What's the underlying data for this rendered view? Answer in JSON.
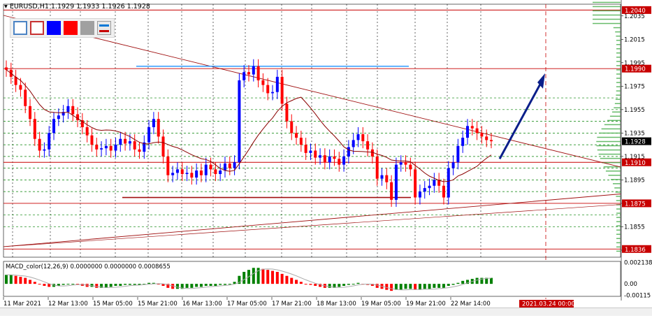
{
  "header": {
    "symbol_line": "EURUSD,H1  1.1929 1.1933 1.1926 1.1928"
  },
  "toolbar": {
    "buttons": [
      {
        "name": "rect-hollow-blue",
        "color": "#4b83c4"
      },
      {
        "name": "rect-hollow-red",
        "color": "#c83232"
      },
      {
        "name": "fill-blue",
        "color": "#0000ff"
      },
      {
        "name": "fill-red",
        "color": "#ff0000"
      },
      {
        "name": "fill-gray",
        "color": "#a0a0a0"
      },
      {
        "name": "lines-blue-red",
        "color": "#0078d7"
      }
    ]
  },
  "chart_data": {
    "type": "line",
    "symbol": "EURUSD",
    "timeframe": "H1",
    "ohlc_last": {
      "open": 1.1929,
      "high": 1.1933,
      "low": 1.1926,
      "close": 1.1928
    },
    "ylim": [
      1.1829,
      1.2045
    ],
    "price_ticks": [
      "1.2035",
      "1.2015",
      "1.1995",
      "1.1975",
      "1.1955",
      "1.1935",
      "1.1915",
      "1.1895",
      "1.1875",
      "1.1855",
      "1.1835"
    ],
    "price_labels": [
      {
        "text": "1.2040",
        "price": 1.204,
        "color": "#c80000"
      },
      {
        "text": "1.1990",
        "price": 1.199,
        "color": "#c80000"
      },
      {
        "text": "1.1928",
        "price": 1.1928,
        "color": "#000000"
      },
      {
        "text": "1.1910",
        "price": 1.191,
        "color": "#c80000"
      },
      {
        "text": "1.1875",
        "price": 1.1875,
        "color": "#c80000"
      },
      {
        "text": "1.1836",
        "price": 1.1836,
        "color": "#c80000"
      }
    ],
    "time_labels": [
      "11 Mar 2021",
      "12 Mar 13:00",
      "15 Mar 05:00",
      "15 Mar 21:00",
      "16 Mar 13:00",
      "17 Mar 05:00",
      "17 Mar 21:00",
      "18 Mar 13:00",
      "19 Mar 05:00",
      "19 Mar 21:00",
      "22 Mar 14:00"
    ],
    "future_label": "2021.03.24 00:00",
    "horizontal_levels": [
      1.204,
      1.199,
      1.191,
      1.1875,
      1.1836
    ],
    "support_resistance_dotted": [
      1.1965,
      1.1955,
      1.1945,
      1.1935,
      1.1925,
      1.1915,
      1.1905,
      1.1895,
      1.1885,
      1.1865,
      1.1855
    ],
    "colors": {
      "bull": "#0000ff",
      "bear": "#ff0000",
      "level": "#c80000",
      "dotted_grid": "#008000",
      "arrow": "#0b1f8a",
      "hline_blue": "#1e90ff",
      "ma": "#8b0000",
      "volume_profile": "#4caf50"
    },
    "close_series": [
      1.1989,
      1.1983,
      1.1976,
      1.1972,
      1.1958,
      1.1947,
      1.193,
      1.192,
      1.1921,
      1.1935,
      1.1947,
      1.195,
      1.1953,
      1.1958,
      1.1951,
      1.1946,
      1.194,
      1.1933,
      1.1925,
      1.1921,
      1.1922,
      1.1924,
      1.192,
      1.1925,
      1.193,
      1.1926,
      1.1928,
      1.1921,
      1.1919,
      1.1927,
      1.194,
      1.1947,
      1.1932,
      1.1915,
      1.1899,
      1.1901,
      1.1904,
      1.19,
      1.1901,
      1.1897,
      1.1903,
      1.1899,
      1.1908,
      1.1904,
      1.19,
      1.1903,
      1.1909,
      1.1905,
      1.191,
      1.198,
      1.1987,
      1.1985,
      1.1992,
      1.198,
      1.1976,
      1.1969,
      1.197,
      1.1983,
      1.196,
      1.1945,
      1.1935,
      1.1931,
      1.1925,
      1.1918,
      1.192,
      1.1914,
      1.1916,
      1.191,
      1.1915,
      1.1913,
      1.1908,
      1.1915,
      1.1923,
      1.1929,
      1.1934,
      1.1928,
      1.1921,
      1.1915,
      1.1896,
      1.1899,
      1.1893,
      1.1878,
      1.1908,
      1.191,
      1.1908,
      1.1904,
      1.188,
      1.1885,
      1.1888,
      1.189,
      1.1895,
      1.189,
      1.188,
      1.1905,
      1.191,
      1.1924,
      1.1931,
      1.1941,
      1.1939,
      1.1935,
      1.1932,
      1.1929,
      1.1928
    ],
    "macd": {
      "label": "MACD_color(12,26,9) 0.0000000 0.0000000 0.0008655",
      "ticks": [
        "0.002138",
        "0.00",
        "-0.00115"
      ],
      "ylim": [
        -0.00125,
        0.00225
      ],
      "histogram": [
        0.0009,
        0.0009,
        0.0008,
        0.0007,
        0.0006,
        0.0004,
        0.0002,
        0.0,
        -0.0002,
        -0.0003,
        -0.0003,
        -0.0002,
        -0.0001,
        0.0,
        0.0,
        -0.0001,
        -0.0002,
        -0.0003,
        -0.0003,
        -0.0004,
        -0.0004,
        -0.0004,
        -0.0003,
        -0.0002,
        -0.0002,
        -0.0001,
        -0.0001,
        -0.0001,
        -0.0001,
        0.0,
        0.0001,
        0.0001,
        0.0,
        -0.0002,
        -0.0004,
        -0.0005,
        -0.0005,
        -0.0005,
        -0.0004,
        -0.0004,
        -0.0003,
        -0.0003,
        -0.0002,
        -0.0002,
        -0.0002,
        -0.0001,
        -0.0001,
        0.0,
        0.0002,
        0.0008,
        0.0012,
        0.0014,
        0.0016,
        0.0016,
        0.0015,
        0.0014,
        0.0013,
        0.0012,
        0.001,
        0.0008,
        0.0006,
        0.0004,
        0.0002,
        0.0,
        -0.0001,
        -0.0002,
        -0.0003,
        -0.0004,
        -0.0004,
        -0.0004,
        -0.0003,
        -0.0002,
        -0.0001,
        0.0,
        0.0001,
        0.0,
        -0.0001,
        -0.0002,
        -0.0004,
        -0.0005,
        -0.0006,
        -0.0007,
        -0.0006,
        -0.0006,
        -0.0005,
        -0.0005,
        -0.0006,
        -0.0006,
        -0.0005,
        -0.0005,
        -0.0004,
        -0.0004,
        -0.0004,
        -0.0002,
        -0.0001,
        0.0001,
        0.0003,
        0.0004,
        0.0005,
        0.0006,
        0.0006,
        0.0006,
        0.0006
      ]
    }
  }
}
